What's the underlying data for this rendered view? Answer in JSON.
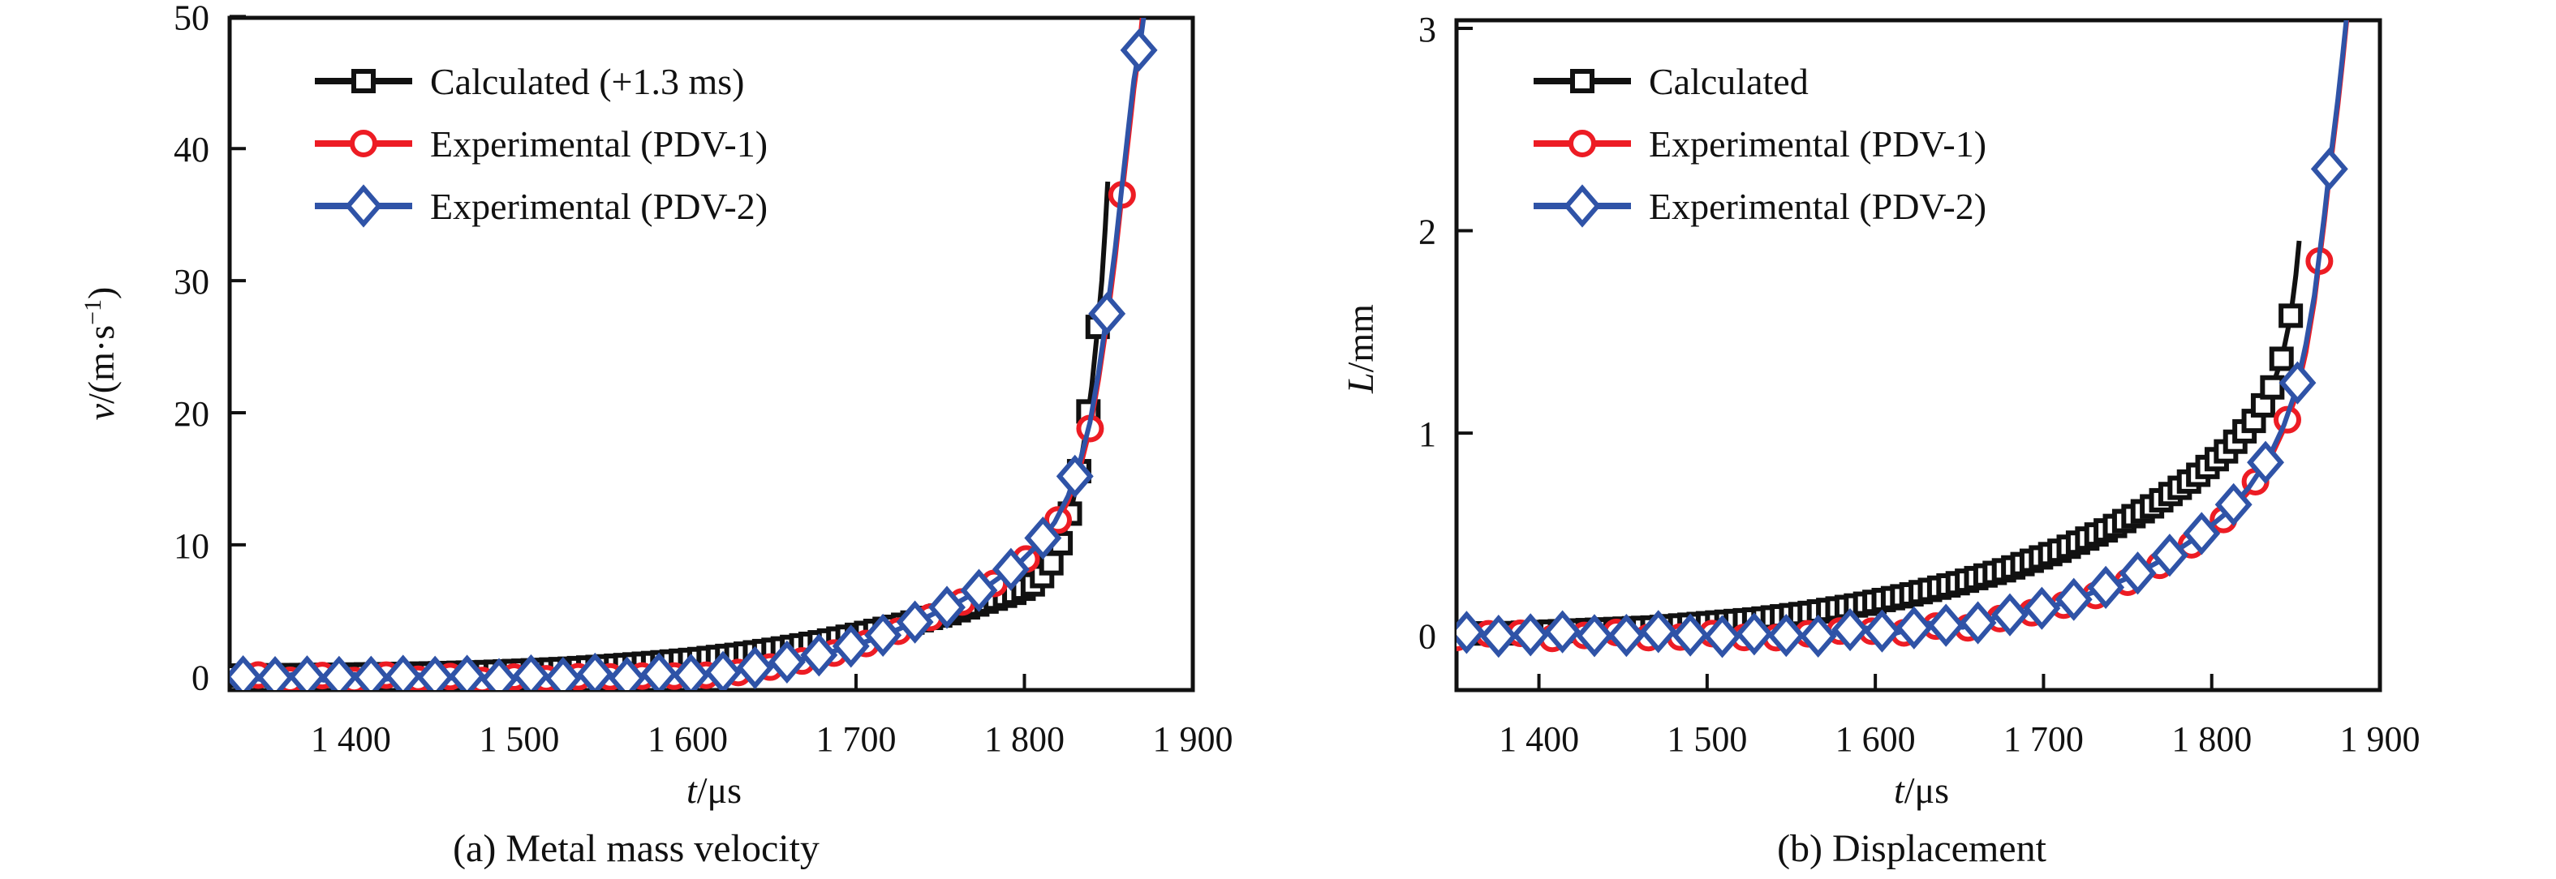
{
  "figure": {
    "background": "#ffffff",
    "colors": {
      "calculated": "#111111",
      "pdv1": "#ed1c24",
      "pdv2": "#2f53a7"
    }
  },
  "chart_data": [
    {
      "type": "line",
      "panel": "a",
      "caption": "(a) Metal mass velocity",
      "xlabel_parts": {
        "var": "t",
        "rest": "/μs"
      },
      "ylabel_parts": {
        "var": "v",
        "rest": "/(m·s",
        "sup": "−1",
        "close": ")"
      },
      "xlim": [
        1328,
        1900
      ],
      "ylim": [
        -1,
        49.9
      ],
      "x_ticks": [
        1400,
        1500,
        1600,
        1700,
        1800,
        1900
      ],
      "x_tick_labels": [
        "1 400",
        "1 500",
        "1 600",
        "1 700",
        "1 800",
        "1 900"
      ],
      "y_ticks": [
        0,
        10,
        20,
        30,
        40,
        50
      ],
      "y_tick_labels": [
        "0",
        "10",
        "20",
        "30",
        "40",
        "50"
      ],
      "grid": false,
      "legend_position": "upper-left",
      "series": [
        {
          "name": "Calculated (+1.3 ms)",
          "color": "#111111",
          "marker": "square",
          "marker_step": 5.5,
          "marker_start": 1332,
          "marker_end": 1847,
          "points": [
            [
              1330,
              0.1
            ],
            [
              1355,
              0.12
            ],
            [
              1380,
              0.15
            ],
            [
              1405,
              0.18
            ],
            [
              1430,
              0.22
            ],
            [
              1455,
              0.28
            ],
            [
              1480,
              0.36
            ],
            [
              1505,
              0.48
            ],
            [
              1530,
              0.62
            ],
            [
              1555,
              0.82
            ],
            [
              1580,
              1.05
            ],
            [
              1605,
              1.32
            ],
            [
              1630,
              1.68
            ],
            [
              1655,
              2.12
            ],
            [
              1680,
              2.65
            ],
            [
              1705,
              3.3
            ],
            [
              1730,
              4.0
            ],
            [
              1755,
              4.8
            ],
            [
              1775,
              5.6
            ],
            [
              1795,
              6.4
            ],
            [
              1805,
              7.0
            ],
            [
              1812,
              7.8
            ],
            [
              1818,
              9.0
            ],
            [
              1823,
              10.6
            ],
            [
              1828,
              12.8
            ],
            [
              1832,
              15.2
            ],
            [
              1836,
              18.2
            ],
            [
              1840,
              22.0
            ],
            [
              1843,
              25.8
            ],
            [
              1846,
              30.0
            ],
            [
              1848,
              34.0
            ],
            [
              1849.5,
              37.5
            ]
          ]
        },
        {
          "name": "Experimental (PDV-1)",
          "color": "#ed1c24",
          "marker": "circle",
          "marker_step": 19,
          "marker_start": 1345,
          "marker_end": 1860,
          "points": [
            [
              1330,
              -0.1
            ],
            [
              1348,
              0.18
            ],
            [
              1366,
              -0.32
            ],
            [
              1384,
              0.12
            ],
            [
              1402,
              -0.28
            ],
            [
              1420,
              0.15
            ],
            [
              1438,
              -0.22
            ],
            [
              1456,
              0.1
            ],
            [
              1474,
              -0.38
            ],
            [
              1492,
              0.08
            ],
            [
              1510,
              -0.28
            ],
            [
              1528,
              0.12
            ],
            [
              1546,
              -0.18
            ],
            [
              1564,
              0.22
            ],
            [
              1582,
              -0.1
            ],
            [
              1600,
              0.18
            ],
            [
              1618,
              0.08
            ],
            [
              1636,
              0.45
            ],
            [
              1654,
              0.85
            ],
            [
              1672,
              1.3
            ],
            [
              1690,
              1.9
            ],
            [
              1708,
              2.6
            ],
            [
              1726,
              3.5
            ],
            [
              1744,
              4.5
            ],
            [
              1762,
              5.6
            ],
            [
              1780,
              6.9
            ],
            [
              1796,
              8.3
            ],
            [
              1808,
              9.8
            ],
            [
              1818,
              11.4
            ],
            [
              1826,
              13.3
            ],
            [
              1833,
              15.8
            ],
            [
              1839,
              18.8
            ],
            [
              1844,
              22.5
            ],
            [
              1849,
              26.8
            ],
            [
              1854,
              31.8
            ],
            [
              1858,
              36.5
            ],
            [
              1862,
              41.0
            ],
            [
              1865,
              44.5
            ],
            [
              1868,
              47.3
            ],
            [
              1870.5,
              50.6
            ]
          ]
        },
        {
          "name": "Experimental (PDV-2)",
          "color": "#2f53a7",
          "marker": "diamond",
          "marker_step": 19,
          "marker_start": 1336,
          "marker_end": 1869,
          "points": [
            [
              1330,
              0.12
            ],
            [
              1348,
              -0.22
            ],
            [
              1366,
              0.2
            ],
            [
              1384,
              -0.25
            ],
            [
              1402,
              0.18
            ],
            [
              1420,
              -0.2
            ],
            [
              1438,
              0.2
            ],
            [
              1456,
              -0.15
            ],
            [
              1474,
              0.12
            ],
            [
              1492,
              -0.3
            ],
            [
              1510,
              0.15
            ],
            [
              1528,
              -0.15
            ],
            [
              1546,
              0.22
            ],
            [
              1564,
              -0.1
            ],
            [
              1582,
              0.22
            ],
            [
              1600,
              0.1
            ],
            [
              1618,
              0.28
            ],
            [
              1636,
              0.6
            ],
            [
              1654,
              1.0
            ],
            [
              1672,
              1.45
            ],
            [
              1690,
              2.05
            ],
            [
              1708,
              2.75
            ],
            [
              1726,
              3.65
            ],
            [
              1744,
              4.65
            ],
            [
              1762,
              5.75
            ],
            [
              1780,
              7.05
            ],
            [
              1796,
              8.5
            ],
            [
              1808,
              10.0
            ],
            [
              1818,
              11.7
            ],
            [
              1826,
              13.7
            ],
            [
              1833,
              16.3
            ],
            [
              1839,
              19.3
            ],
            [
              1844,
              23.0
            ],
            [
              1849,
              27.5
            ],
            [
              1854,
              32.5
            ],
            [
              1858,
              37.2
            ],
            [
              1862,
              41.8
            ],
            [
              1865,
              45.2
            ],
            [
              1869,
              48.2
            ],
            [
              1871.5,
              50.6
            ]
          ]
        }
      ]
    },
    {
      "type": "line",
      "panel": "b",
      "caption": "(b) Displacement",
      "xlabel_parts": {
        "var": "t",
        "rest": "/μs"
      },
      "ylabel_parts": {
        "var": "L",
        "rest": "/mm",
        "sup": "",
        "close": ""
      },
      "xlim": [
        1351,
        1900
      ],
      "ylim": [
        -0.27,
        3.04
      ],
      "x_ticks": [
        1400,
        1500,
        1600,
        1700,
        1800,
        1900
      ],
      "x_tick_labels": [
        "1 400",
        "1 500",
        "1 600",
        "1 700",
        "1 800",
        "1 900"
      ],
      "y_ticks": [
        0,
        1,
        2,
        3
      ],
      "y_tick_labels": [
        "0",
        "1",
        "2",
        "3"
      ],
      "grid": false,
      "legend_position": "upper-left",
      "series": [
        {
          "name": "Calculated",
          "color": "#111111",
          "marker": "square",
          "marker_step": 5.5,
          "marker_start": 1352,
          "marker_end": 1850,
          "points": [
            [
              1352,
              0.01
            ],
            [
              1380,
              0.01
            ],
            [
              1410,
              0.02
            ],
            [
              1440,
              0.03
            ],
            [
              1470,
              0.04
            ],
            [
              1500,
              0.06
            ],
            [
              1530,
              0.08
            ],
            [
              1560,
              0.11
            ],
            [
              1590,
              0.15
            ],
            [
              1620,
              0.2
            ],
            [
              1650,
              0.26
            ],
            [
              1680,
              0.33
            ],
            [
              1710,
              0.42
            ],
            [
              1740,
              0.53
            ],
            [
              1765,
              0.64
            ],
            [
              1790,
              0.78
            ],
            [
              1810,
              0.92
            ],
            [
              1825,
              1.06
            ],
            [
              1835,
              1.2
            ],
            [
              1842,
              1.38
            ],
            [
              1847,
              1.58
            ],
            [
              1850,
              1.78
            ],
            [
              1852,
              1.95
            ]
          ]
        },
        {
          "name": "Experimental (PDV-1)",
          "color": "#ed1c24",
          "marker": "circle",
          "marker_step": 19,
          "marker_start": 1351,
          "marker_end": 1866,
          "points": [
            [
              1352,
              -0.01
            ],
            [
              1382,
              0.02
            ],
            [
              1412,
              -0.02
            ],
            [
              1442,
              0.02
            ],
            [
              1472,
              -0.02
            ],
            [
              1502,
              0.01
            ],
            [
              1532,
              -0.02
            ],
            [
              1562,
              0.01
            ],
            [
              1592,
              0.03
            ],
            [
              1612,
              0.0
            ],
            [
              1632,
              0.05
            ],
            [
              1652,
              0.03
            ],
            [
              1672,
              0.08
            ],
            [
              1692,
              0.11
            ],
            [
              1712,
              0.15
            ],
            [
              1732,
              0.2
            ],
            [
              1752,
              0.27
            ],
            [
              1772,
              0.36
            ],
            [
              1792,
              0.47
            ],
            [
              1808,
              0.58
            ],
            [
              1822,
              0.71
            ],
            [
              1834,
              0.86
            ],
            [
              1843,
              1.02
            ],
            [
              1850,
              1.18
            ],
            [
              1856,
              1.4
            ],
            [
              1861,
              1.65
            ],
            [
              1864,
              1.85
            ],
            [
              1867,
              2.05
            ],
            [
              1871,
              2.35
            ],
            [
              1875,
              2.62
            ],
            [
              1878,
              2.85
            ],
            [
              1881,
              3.1
            ]
          ]
        },
        {
          "name": "Experimental (PDV-2)",
          "color": "#2f53a7",
          "marker": "diamond",
          "marker_step": 19,
          "marker_start": 1357,
          "marker_end": 1871,
          "points": [
            [
              1352,
              0.02
            ],
            [
              1382,
              -0.01
            ],
            [
              1412,
              0.02
            ],
            [
              1442,
              -0.01
            ],
            [
              1472,
              0.02
            ],
            [
              1502,
              -0.01
            ],
            [
              1532,
              0.01
            ],
            [
              1562,
              -0.01
            ],
            [
              1592,
              0.04
            ],
            [
              1612,
              0.01
            ],
            [
              1632,
              0.06
            ],
            [
              1652,
              0.04
            ],
            [
              1672,
              0.09
            ],
            [
              1692,
              0.12
            ],
            [
              1712,
              0.16
            ],
            [
              1732,
              0.22
            ],
            [
              1752,
              0.29
            ],
            [
              1772,
              0.38
            ],
            [
              1792,
              0.49
            ],
            [
              1808,
              0.6
            ],
            [
              1822,
              0.73
            ],
            [
              1834,
              0.88
            ],
            [
              1843,
              1.04
            ],
            [
              1850,
              1.21
            ],
            [
              1856,
              1.44
            ],
            [
              1861,
              1.68
            ],
            [
              1864,
              1.88
            ],
            [
              1867,
              2.08
            ],
            [
              1871,
              2.38
            ],
            [
              1875,
              2.65
            ],
            [
              1878,
              2.88
            ],
            [
              1881,
              3.12
            ]
          ]
        }
      ]
    }
  ]
}
